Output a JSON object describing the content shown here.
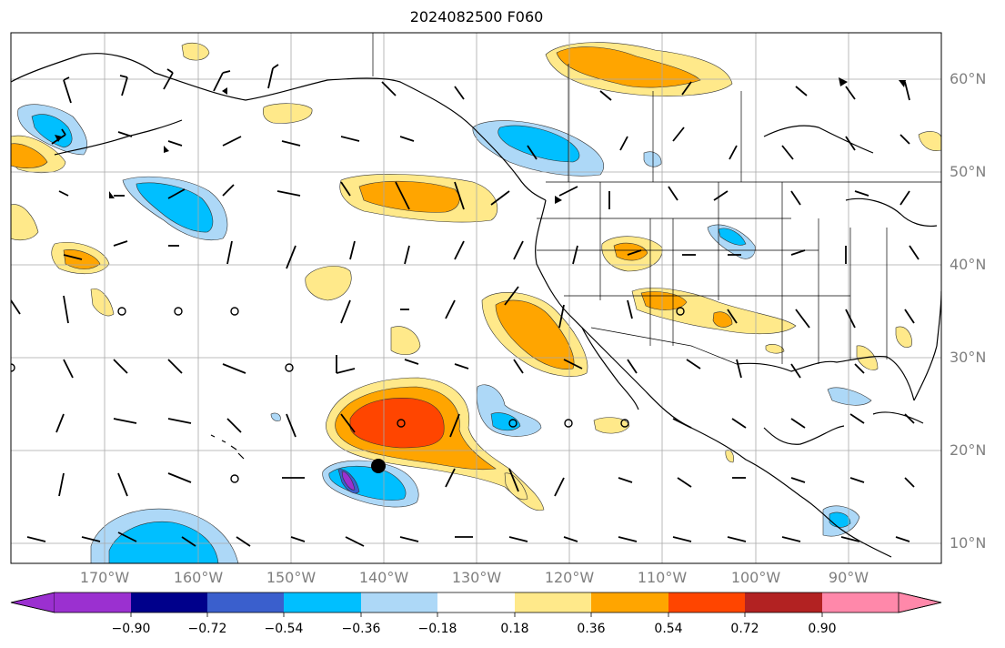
{
  "title": "2024082500 F060",
  "lat_labels": [
    "60°N",
    "50°N",
    "40°N",
    "30°N",
    "20°N",
    "10°N"
  ],
  "lon_labels": [
    "170°W",
    "160°W",
    "150°W",
    "140°W",
    "130°W",
    "120°W",
    "110°W",
    "100°W",
    "90°W"
  ],
  "colorbar": {
    "tick_labels": [
      "−0.90",
      "−0.72",
      "−0.54",
      "−0.36",
      "−0.18",
      "0.18",
      "0.36",
      "0.54",
      "0.72",
      "0.90"
    ],
    "colors": [
      "#9b30d0",
      "#00008b",
      "#3a5fcd",
      "#00bfff",
      "#add8f7",
      "#ffffff",
      "#ffe98a",
      "#ffa500",
      "#ff4500",
      "#b22222",
      "#ff88aa"
    ],
    "extend": "both"
  },
  "map_extent": {
    "lon_min": -180,
    "lon_max": -80,
    "lat_min": 8,
    "lat_max": 65
  },
  "markers": {
    "storm_center": {
      "lon": -140.5,
      "lat": 18.5
    }
  }
}
